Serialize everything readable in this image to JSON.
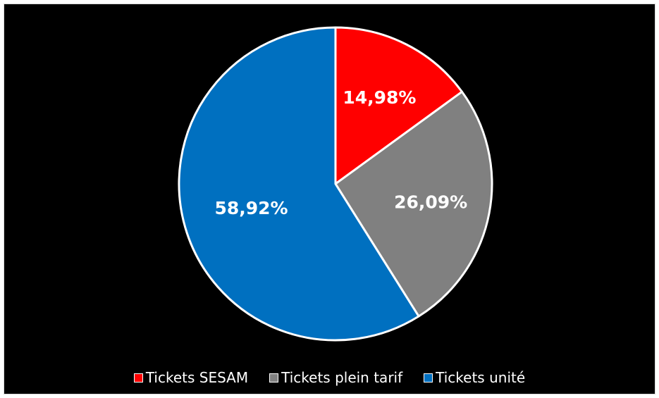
{
  "chart_data": {
    "type": "pie",
    "categories": [
      "Tickets SESAM",
      "Tickets plein tarif",
      "Tickets unité"
    ],
    "values": [
      14.98,
      26.09,
      58.92
    ],
    "data_labels": [
      "14,98%",
      "26,09%",
      "58,92%"
    ],
    "colors": [
      "#ff0000",
      "#808080",
      "#0070c0"
    ],
    "legend_position": "bottom",
    "background": "#000000"
  }
}
